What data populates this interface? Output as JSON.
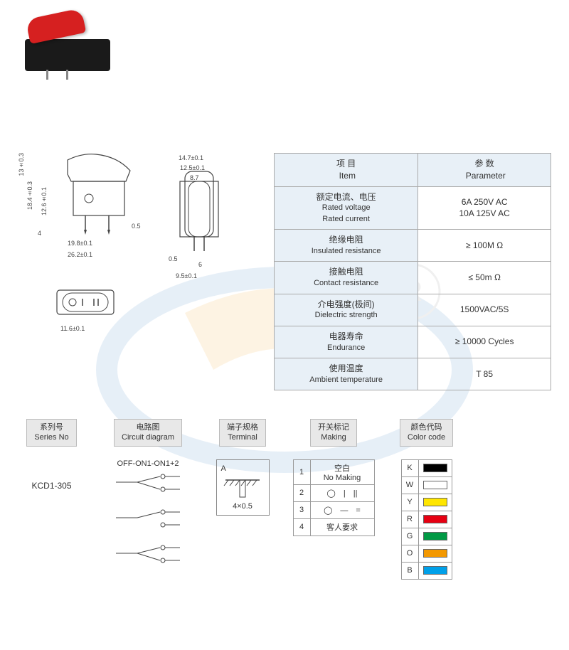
{
  "dimensions": {
    "d1": "13±0.3",
    "d2": "18.4±0.3",
    "d3": "12.6±0.1",
    "d4": "4",
    "d5": "19.8±0.1",
    "d6": "26.2±0.1",
    "d7": "0.5",
    "d8": "14.7±0.1",
    "d9": "12.5±0.1",
    "d10": "8.7",
    "d11": "0.5",
    "d12": "6",
    "d13": "9.5±0.1",
    "d14": "11.6±0.1"
  },
  "spec_table": {
    "header_item_cn": "项 目",
    "header_item_en": "Item",
    "header_param_cn": "参 数",
    "header_param_en": "Parameter",
    "rows": [
      {
        "item_cn": "额定电流、电压",
        "item_en": "Rated voltage\nRated current",
        "param": "6A  250V AC\n10A 125V AC"
      },
      {
        "item_cn": "绝缘电阻",
        "item_en": "Insulated resistance",
        "param": "≥ 100M Ω"
      },
      {
        "item_cn": "接触电阻",
        "item_en": "Contact resistance",
        "param": "≤ 50m Ω"
      },
      {
        "item_cn": "介电强度(极间)",
        "item_en": "Dielectric strength",
        "param": "1500VAC/5S"
      },
      {
        "item_cn": "电器寿命",
        "item_en": "Endurance",
        "param": "≥ 10000 Cycles"
      },
      {
        "item_cn": "使用温度",
        "item_en": "Ambient temperature",
        "param": "T 85"
      }
    ]
  },
  "columns": {
    "series": {
      "hdr_cn": "系列号",
      "hdr_en": "Series No",
      "value": "KCD1-305"
    },
    "circuit": {
      "hdr_cn": "电路图",
      "hdr_en": "Circuit diagram",
      "label": "OFF-ON1-ON1+2"
    },
    "terminal": {
      "hdr_cn": "端子规格",
      "hdr_en": "Terminal",
      "code": "A",
      "spec": "4×0.5"
    },
    "making": {
      "hdr_cn": "开关标记",
      "hdr_en": "Making",
      "rows": [
        {
          "n": "1",
          "text": "空白\nNo Making"
        },
        {
          "n": "2",
          "sym": "◯　|　||"
        },
        {
          "n": "3",
          "sym": "◯　—　="
        },
        {
          "n": "4",
          "text": "客人要求"
        }
      ]
    },
    "color": {
      "hdr_cn": "颜色代码",
      "hdr_en": "Color code",
      "rows": [
        {
          "code": "K",
          "hex": "#000000"
        },
        {
          "code": "W",
          "hex": "#ffffff"
        },
        {
          "code": "Y",
          "hex": "#ffe600"
        },
        {
          "code": "R",
          "hex": "#e60012"
        },
        {
          "code": "G",
          "hex": "#009944"
        },
        {
          "code": "O",
          "hex": "#f39800"
        },
        {
          "code": "B",
          "hex": "#00a0e9"
        }
      ]
    }
  },
  "styling": {
    "header_bg": "#e8f0f7",
    "border_color": "#aaaaaa",
    "text_color": "#333333",
    "product_red": "#d62020",
    "product_black": "#1a1a1a"
  }
}
